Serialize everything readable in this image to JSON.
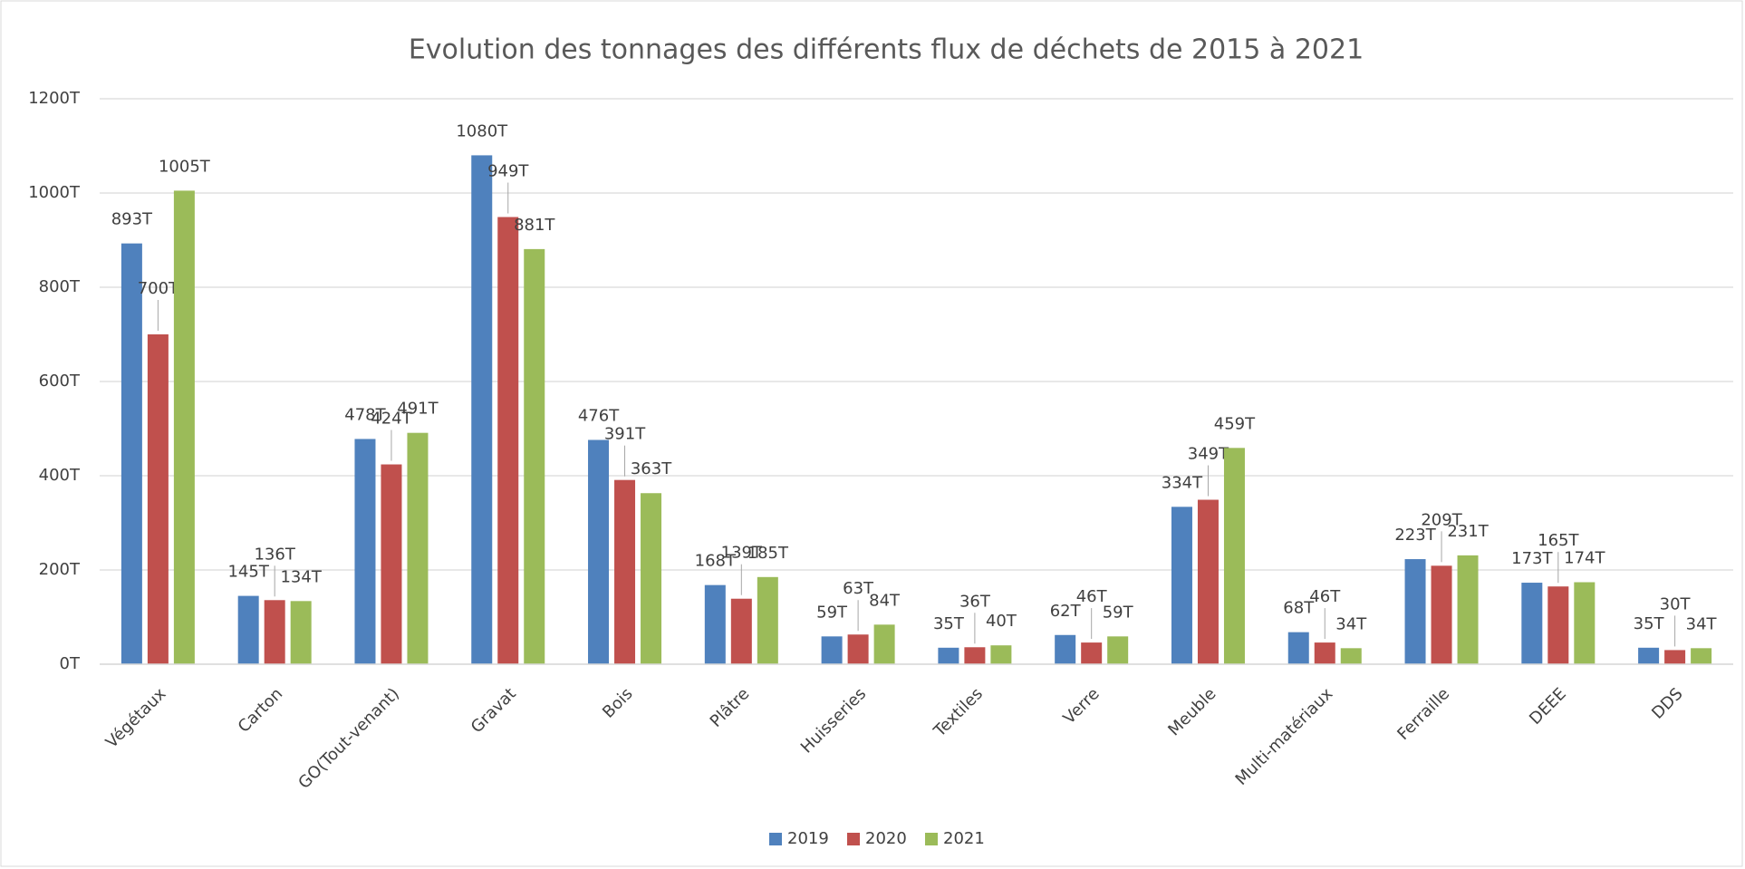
{
  "chart_data": {
    "type": "bar",
    "title": "Evolution des tonnages des différents flux de déchets de 2015 à 2021",
    "categories": [
      "Végétaux",
      "Carton",
      "GO(Tout-venant)",
      "Gravat",
      "Bois",
      "Plâtre",
      "Huisseries",
      "Textiles",
      "Verre",
      "Meuble",
      "Multi-matériaux",
      "Ferraille",
      "DEEE",
      "DDS"
    ],
    "series": [
      {
        "name": "2019",
        "color": "#4f81bd",
        "values": [
          893,
          145,
          478,
          1080,
          476,
          168,
          59,
          35,
          62,
          334,
          68,
          223,
          173,
          35
        ],
        "value_labels": [
          "893T",
          "145T",
          "478T",
          "1080T",
          "476T",
          "168T",
          "59T",
          "35T",
          "62T",
          "334T",
          "68T",
          "223T",
          "173T",
          "35T"
        ]
      },
      {
        "name": "2020",
        "color": "#c0504d",
        "values": [
          700,
          136,
          424,
          949,
          391,
          139,
          63,
          36,
          46,
          349,
          46,
          209,
          165,
          30
        ],
        "value_labels": [
          "700T",
          "136T",
          "424T",
          "949T",
          "391T",
          "139T",
          "63T",
          "36T",
          "46T",
          "349T",
          "46T",
          "209T",
          "165T",
          "30T"
        ]
      },
      {
        "name": "2021",
        "color": "#9bbb59",
        "values": [
          1005,
          134,
          491,
          881,
          363,
          185,
          84,
          40,
          59,
          459,
          34,
          231,
          174,
          34
        ],
        "value_labels": [
          "1005T",
          "134T",
          "491T",
          "881T",
          "363T",
          "185T",
          "84T",
          "40T",
          "59T",
          "459T",
          "34T",
          "231T",
          "174T",
          "34T"
        ]
      }
    ],
    "ylim": [
      0,
      1200
    ],
    "yticks": [
      {
        "value": 0,
        "label": "0T"
      },
      {
        "value": 200,
        "label": "200T"
      },
      {
        "value": 400,
        "label": "400T"
      },
      {
        "value": 600,
        "label": "600T"
      },
      {
        "value": 800,
        "label": "800T"
      },
      {
        "value": 1000,
        "label": "1000T"
      },
      {
        "value": 1200,
        "label": "1200T"
      }
    ],
    "grid": true,
    "legend": "bottom"
  }
}
